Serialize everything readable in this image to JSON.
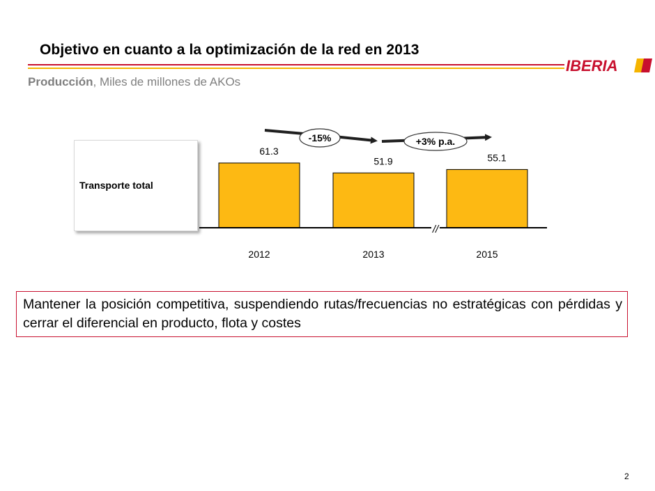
{
  "header": {
    "title": "Objetivo en cuanto a la optimización de la red en 2013",
    "subtitle_bold": "Producción",
    "subtitle_rest": ", Miles de millones de AKOs",
    "logo_text": "IBERIA"
  },
  "row_label": "Transporte total",
  "chart_data": {
    "type": "bar",
    "categories": [
      "2012",
      "2013",
      "2015"
    ],
    "values": [
      61.3,
      51.9,
      55.1
    ],
    "value_labels": [
      "61.3",
      "51.9",
      "55.1"
    ],
    "axis_break": "//",
    "annotations": [
      {
        "text": "-15%",
        "from": "2012",
        "to": "2013"
      },
      {
        "text": "+3% p.a.",
        "from": "2013",
        "to": "2015"
      }
    ],
    "title": "",
    "xlabel": "",
    "ylabel": "",
    "ylim": [
      0,
      61.3
    ],
    "grid": false,
    "colors": {
      "bar": "#FDB913",
      "bar_border": "#000000",
      "arrow": "#1f1f1f"
    }
  },
  "message": "Mantener la posición competitiva, suspendiendo rutas/frecuencias no estratégicas con pérdidas y cerrar el diferencial en producto, flota y costes",
  "page_number": "2",
  "colors": {
    "accent_red": "#c8102e",
    "accent_yellow": "#f5b400",
    "subtitle_gray": "#7f7f7f"
  }
}
